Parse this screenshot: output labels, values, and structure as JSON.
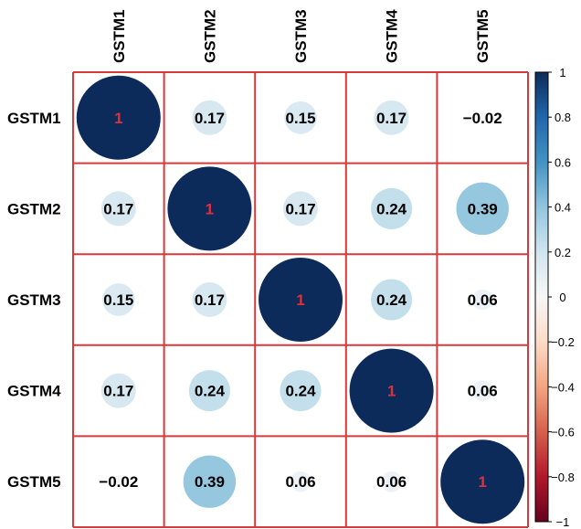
{
  "chart_data": {
    "type": "heatmap",
    "style": "correlation-circle",
    "variables": [
      "GSTM1",
      "GSTM2",
      "GSTM3",
      "GSTM4",
      "GSTM5"
    ],
    "matrix": [
      [
        1,
        0.17,
        0.15,
        0.17,
        -0.02
      ],
      [
        0.17,
        1,
        0.17,
        0.24,
        0.39
      ],
      [
        0.15,
        0.17,
        1,
        0.24,
        0.06
      ],
      [
        0.17,
        0.24,
        0.24,
        1,
        0.06
      ],
      [
        -0.02,
        0.39,
        0.06,
        0.06,
        1
      ]
    ],
    "labels": [
      [
        "1",
        "0.17",
        "0.15",
        "0.17",
        "−0.02"
      ],
      [
        "0.17",
        "1",
        "0.17",
        "0.24",
        "0.39"
      ],
      [
        "0.15",
        "0.17",
        "1",
        "0.24",
        "0.06"
      ],
      [
        "0.17",
        "0.24",
        "0.24",
        "1",
        "0.06"
      ],
      [
        "−0.02",
        "0.39",
        "0.06",
        "0.06",
        "1"
      ]
    ],
    "colorbar": {
      "range": [
        -1,
        1
      ],
      "ticks": [
        1,
        0.8,
        0.6,
        0.4,
        0.2,
        0,
        -0.2,
        -0.4,
        -0.6,
        -0.8,
        -1
      ],
      "tick_labels": [
        "1",
        "0.8",
        "0.6",
        "0.4",
        "0.2",
        "0",
        "−0.2",
        "−0.4",
        "−0.6",
        "−0.8",
        "−1"
      ],
      "position": "right"
    },
    "colors": {
      "grid": "#d63a3a",
      "diagonal_text": "#e0303a",
      "offdiag_text": "#000000",
      "scale_stops": [
        "#67001f",
        "#b2182b",
        "#d6604d",
        "#f4a582",
        "#fddbc7",
        "#f7f7f7",
        "#d1e5f0",
        "#92c5de",
        "#4393c3",
        "#2166ac",
        "#0d2b5a"
      ]
    }
  }
}
